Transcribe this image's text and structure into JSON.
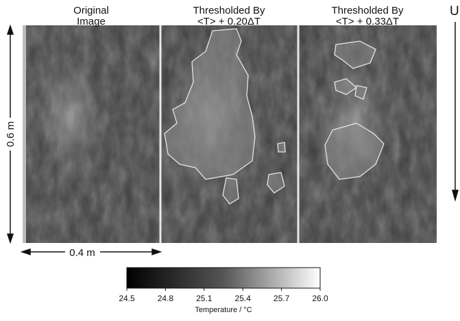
{
  "panels": [
    {
      "title": [
        "Original",
        "Image"
      ]
    },
    {
      "title": [
        "Thresholded By",
        "<T> + 0.20ΔT"
      ]
    },
    {
      "title": [
        "Thresholded By",
        "<T> + 0.33ΔT"
      ]
    }
  ],
  "height_label": "0.6 m",
  "width_label": "0.4 m",
  "flow_label": "U",
  "colorbar": {
    "range": [
      24.5,
      26
    ],
    "ticks": [
      24.5,
      24.8,
      25.1,
      25.4,
      25.7,
      {
        "value": 26,
        "label": "26.0"
      }
    ],
    "label": "Temperature / °C"
  }
}
